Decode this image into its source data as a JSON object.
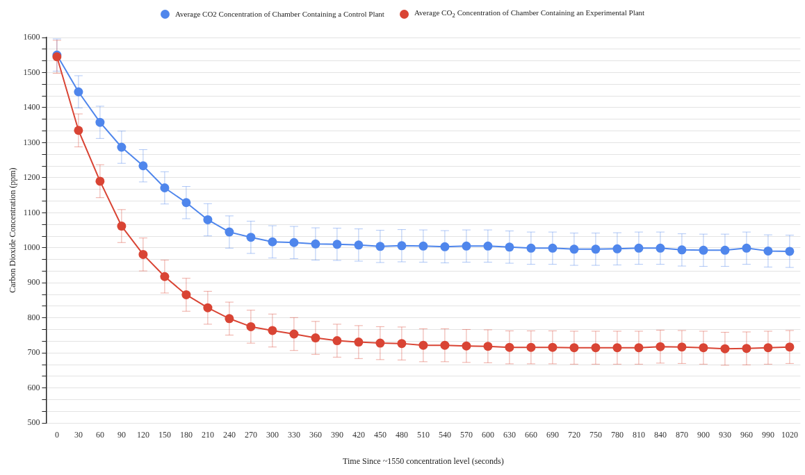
{
  "chart_data": {
    "type": "line",
    "xlabel": "Time Since ~1550 concentration level (seconds)",
    "ylabel": "Carbon Dioxide Concentration (ppm)",
    "categories": [
      "0",
      "30",
      "60",
      "90",
      "120",
      "150",
      "180",
      "210",
      "240",
      "270",
      "300",
      "330",
      "360",
      "390",
      "420",
      "450",
      "480",
      "510",
      "540",
      "570",
      "600",
      "630",
      "660",
      "690",
      "720",
      "750",
      "780",
      "810",
      "840",
      "870",
      "900",
      "930",
      "960",
      "990",
      "1020"
    ],
    "ylim": [
      500,
      1600
    ],
    "yticks": [
      500,
      {
        "value": 533.3,
        "label": null
      },
      {
        "value": 566.7,
        "label": null
      },
      600,
      {
        "value": 633.3,
        "label": null
      },
      {
        "value": 666.7,
        "label": null
      },
      700,
      {
        "value": 733.3,
        "label": null
      },
      {
        "value": 766.7,
        "label": null
      },
      800,
      {
        "value": 833.3,
        "label": null
      },
      {
        "value": 866.7,
        "label": null
      },
      900,
      {
        "value": 933.3,
        "label": null
      },
      {
        "value": 966.7,
        "label": null
      },
      1000,
      {
        "value": 1033.3,
        "label": null
      },
      {
        "value": 1066.7,
        "label": null
      },
      1100,
      {
        "value": 1133.3,
        "label": null
      },
      {
        "value": 1166.7,
        "label": null
      },
      1200,
      {
        "value": 1233.3,
        "label": null
      },
      {
        "value": 1266.7,
        "label": null
      },
      1300,
      {
        "value": 1333.3,
        "label": null
      },
      {
        "value": 1366.7,
        "label": null
      },
      1400,
      {
        "value": 1433.3,
        "label": null
      },
      {
        "value": 1466.7,
        "label": null
      },
      1500,
      {
        "value": 1533.3,
        "label": null
      },
      {
        "value": 1566.7,
        "label": null
      },
      1600
    ],
    "grid": "y",
    "legend": "top",
    "marker": "circle",
    "line_style": "solid",
    "series": [
      {
        "name": "Average CO2 Concentration of Chamber Containing a Control Plant",
        "color": "#4f86ec",
        "values": [
          1550,
          1445,
          1358,
          1287,
          1234,
          1171,
          1129,
          1080,
          1045,
          1030,
          1017,
          1015,
          1011,
          1010,
          1008,
          1004,
          1006,
          1005,
          1003,
          1005,
          1005,
          1002,
          999,
          999,
          996,
          996,
          997,
          999,
          999,
          994,
          993,
          993,
          999,
          991,
          990
        ],
        "errors": [
          46,
          46,
          46,
          46,
          46,
          46,
          46,
          46,
          46,
          46,
          46,
          46,
          46,
          46,
          46,
          46,
          46,
          46,
          46,
          46,
          46,
          46,
          46,
          46,
          46,
          46,
          46,
          46,
          46,
          46,
          46,
          46,
          46,
          46,
          46
        ]
      },
      {
        "name": "Average CO$_{2}$ Concentration of Chamber Containing an Experimental Plant",
        "color": "#d94434",
        "values": [
          1545,
          1335,
          1190,
          1062,
          981,
          918,
          866,
          829,
          798,
          775,
          764,
          754,
          743,
          735,
          731,
          728,
          727,
          722,
          722,
          720,
          719,
          716,
          716,
          716,
          715,
          715,
          715,
          715,
          718,
          717,
          715,
          712,
          713,
          715,
          717
        ],
        "errors": [
          47,
          47,
          47,
          47,
          47,
          47,
          47,
          47,
          47,
          47,
          47,
          47,
          47,
          47,
          47,
          47,
          47,
          47,
          47,
          47,
          47,
          47,
          47,
          47,
          47,
          47,
          47,
          47,
          47,
          47,
          47,
          47,
          47,
          47,
          47
        ]
      }
    ]
  }
}
